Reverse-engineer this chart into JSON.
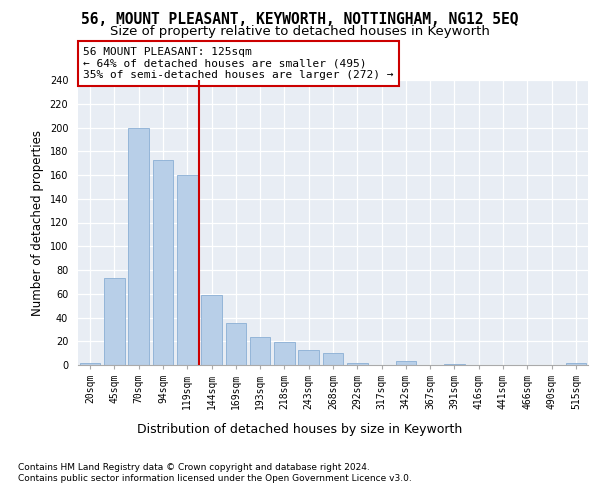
{
  "title": "56, MOUNT PLEASANT, KEYWORTH, NOTTINGHAM, NG12 5EQ",
  "subtitle": "Size of property relative to detached houses in Keyworth",
  "xlabel": "Distribution of detached houses by size in Keyworth",
  "ylabel": "Number of detached properties",
  "bar_labels": [
    "20sqm",
    "45sqm",
    "70sqm",
    "94sqm",
    "119sqm",
    "144sqm",
    "169sqm",
    "193sqm",
    "218sqm",
    "243sqm",
    "268sqm",
    "292sqm",
    "317sqm",
    "342sqm",
    "367sqm",
    "391sqm",
    "416sqm",
    "441sqm",
    "466sqm",
    "490sqm",
    "515sqm"
  ],
  "bar_values": [
    2,
    73,
    200,
    173,
    160,
    59,
    35,
    24,
    19,
    13,
    10,
    2,
    0,
    3,
    0,
    1,
    0,
    0,
    0,
    0,
    2
  ],
  "bar_color": "#b8cfe8",
  "bar_edgecolor": "#8aafd4",
  "vline_x": 4.5,
  "vline_color": "#cc0000",
  "annotation_text_line1": "56 MOUNT PLEASANT: 125sqm",
  "annotation_text_line2": "← 64% of detached houses are smaller (495)",
  "annotation_text_line3": "35% of semi-detached houses are larger (272) →",
  "ylim": [
    0,
    240
  ],
  "yticks": [
    0,
    20,
    40,
    60,
    80,
    100,
    120,
    140,
    160,
    180,
    200,
    220,
    240
  ],
  "bg_color": "#e8edf4",
  "footer_line1": "Contains HM Land Registry data © Crown copyright and database right 2024.",
  "footer_line2": "Contains public sector information licensed under the Open Government Licence v3.0.",
  "title_fontsize": 10.5,
  "subtitle_fontsize": 9.5,
  "ylabel_fontsize": 8.5,
  "xlabel_fontsize": 9,
  "tick_fontsize": 7,
  "annotation_fontsize": 8,
  "footer_fontsize": 6.5
}
